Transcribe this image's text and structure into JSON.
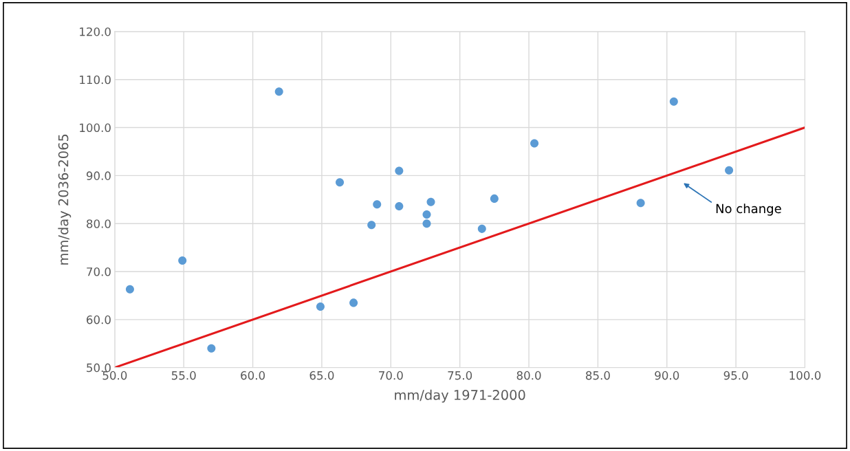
{
  "chart_data": {
    "type": "scatter",
    "xlabel": "mm/day 1971-2000",
    "ylabel": "mm/day 2036-2065",
    "xlim": [
      50,
      100
    ],
    "ylim": [
      50,
      120
    ],
    "xticks": [
      {
        "value": 50,
        "label": "50.0"
      },
      {
        "value": 55,
        "label": "55.0"
      },
      {
        "value": 60,
        "label": "60.0"
      },
      {
        "value": 65,
        "label": "65.0"
      },
      {
        "value": 70,
        "label": "70.0"
      },
      {
        "value": 75,
        "label": "75.0"
      },
      {
        "value": 80,
        "label": "80.0"
      },
      {
        "value": 85,
        "label": "85.0"
      },
      {
        "value": 90,
        "label": "90.0"
      },
      {
        "value": 95,
        "label": "95.0"
      },
      {
        "value": 100,
        "label": "100.0"
      }
    ],
    "yticks": [
      {
        "value": 50,
        "label": "50.0"
      },
      {
        "value": 60,
        "label": "60.0"
      },
      {
        "value": 70,
        "label": "70.0"
      },
      {
        "value": 80,
        "label": "80.0"
      },
      {
        "value": 90,
        "label": "90.0"
      },
      {
        "value": 100,
        "label": "100.0"
      },
      {
        "value": 110,
        "label": "110.0"
      },
      {
        "value": 120,
        "label": "120.0"
      }
    ],
    "grid": true,
    "marker": "circle",
    "series": [
      {
        "color": "#5b9bd5",
        "x": [
          51.1,
          54.9,
          57.0,
          61.9,
          64.9,
          67.3,
          66.3,
          68.6,
          69.0,
          70.6,
          70.6,
          72.6,
          72.6,
          72.9,
          76.6,
          77.5,
          80.4,
          88.1,
          90.5,
          94.5
        ],
        "values": [
          66.3,
          72.3,
          54.0,
          107.5,
          62.7,
          63.5,
          88.6,
          79.7,
          84.0,
          91.0,
          83.6,
          81.9,
          80.0,
          84.5,
          78.9,
          85.2,
          96.7,
          84.3,
          105.4,
          91.1
        ]
      },
      {
        "type": "line",
        "color": "#e31a1c",
        "x": [
          50,
          100
        ],
        "values": [
          50,
          100
        ],
        "marker": "none"
      }
    ],
    "annotations": [
      "No change"
    ]
  }
}
